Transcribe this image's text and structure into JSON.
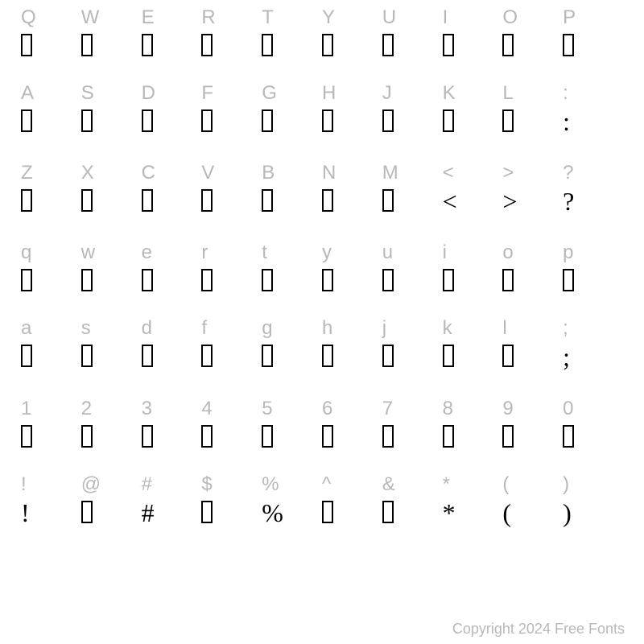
{
  "layout": {
    "columns": 10,
    "rows": 7
  },
  "colors": {
    "label": "#b8b8b8",
    "glyph": "#000000",
    "background": "#ffffff"
  },
  "typography": {
    "label_fontsize": 24,
    "glyph_fontsize": 32,
    "copyright_fontsize": 18,
    "label_font": "sans-serif",
    "glyph_font": "serif"
  },
  "rows": [
    [
      {
        "label": "Q",
        "glyph": null
      },
      {
        "label": "W",
        "glyph": null
      },
      {
        "label": "E",
        "glyph": null
      },
      {
        "label": "R",
        "glyph": null
      },
      {
        "label": "T",
        "glyph": null
      },
      {
        "label": "Y",
        "glyph": null
      },
      {
        "label": "U",
        "glyph": null
      },
      {
        "label": "I",
        "glyph": null
      },
      {
        "label": "O",
        "glyph": null
      },
      {
        "label": "P",
        "glyph": null
      }
    ],
    [
      {
        "label": "A",
        "glyph": null
      },
      {
        "label": "S",
        "glyph": null
      },
      {
        "label": "D",
        "glyph": null
      },
      {
        "label": "F",
        "glyph": null
      },
      {
        "label": "G",
        "glyph": null
      },
      {
        "label": "H",
        "glyph": null
      },
      {
        "label": "J",
        "glyph": null
      },
      {
        "label": "K",
        "glyph": null
      },
      {
        "label": "L",
        "glyph": null
      },
      {
        "label": ":",
        "glyph": ":"
      }
    ],
    [
      {
        "label": "Z",
        "glyph": null
      },
      {
        "label": "X",
        "glyph": null
      },
      {
        "label": "C",
        "glyph": null
      },
      {
        "label": "V",
        "glyph": null
      },
      {
        "label": "B",
        "glyph": null
      },
      {
        "label": "N",
        "glyph": null
      },
      {
        "label": "M",
        "glyph": null
      },
      {
        "label": "<",
        "glyph": "<"
      },
      {
        "label": ">",
        "glyph": ">"
      },
      {
        "label": "?",
        "glyph": "?"
      }
    ],
    [
      {
        "label": "q",
        "glyph": null
      },
      {
        "label": "w",
        "glyph": null
      },
      {
        "label": "e",
        "glyph": null
      },
      {
        "label": "r",
        "glyph": null
      },
      {
        "label": "t",
        "glyph": null
      },
      {
        "label": "y",
        "glyph": null
      },
      {
        "label": "u",
        "glyph": null
      },
      {
        "label": "i",
        "glyph": null
      },
      {
        "label": "o",
        "glyph": null
      },
      {
        "label": "p",
        "glyph": null
      }
    ],
    [
      {
        "label": "a",
        "glyph": null
      },
      {
        "label": "s",
        "glyph": null
      },
      {
        "label": "d",
        "glyph": null
      },
      {
        "label": "f",
        "glyph": null
      },
      {
        "label": "g",
        "glyph": null
      },
      {
        "label": "h",
        "glyph": null
      },
      {
        "label": "j",
        "glyph": null
      },
      {
        "label": "k",
        "glyph": null
      },
      {
        "label": "l",
        "glyph": null
      },
      {
        "label": ";",
        "glyph": ";"
      }
    ],
    [
      {
        "label": "1",
        "glyph": null
      },
      {
        "label": "2",
        "glyph": null
      },
      {
        "label": "3",
        "glyph": null
      },
      {
        "label": "4",
        "glyph": null
      },
      {
        "label": "5",
        "glyph": null
      },
      {
        "label": "6",
        "glyph": null
      },
      {
        "label": "7",
        "glyph": null
      },
      {
        "label": "8",
        "glyph": null
      },
      {
        "label": "9",
        "glyph": null
      },
      {
        "label": "0",
        "glyph": null
      }
    ],
    [
      {
        "label": "!",
        "glyph": "!"
      },
      {
        "label": "@",
        "glyph": null
      },
      {
        "label": "#",
        "glyph": "#"
      },
      {
        "label": "$",
        "glyph": null
      },
      {
        "label": "%",
        "glyph": "%"
      },
      {
        "label": "^",
        "glyph": null
      },
      {
        "label": "&",
        "glyph": null
      },
      {
        "label": "*",
        "glyph": "*"
      },
      {
        "label": "(",
        "glyph": "("
      },
      {
        "label": ")",
        "glyph": ")"
      }
    ]
  ],
  "copyright": "Copyright 2024 Free Fonts"
}
